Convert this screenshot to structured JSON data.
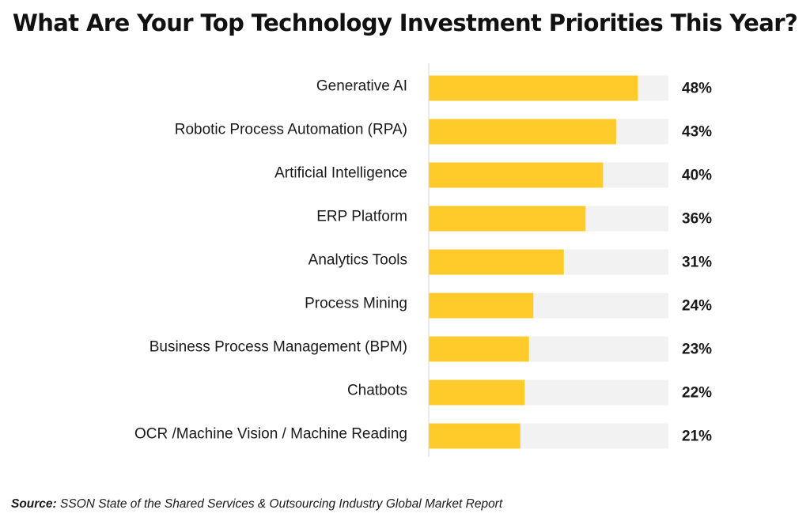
{
  "chart_data": {
    "type": "bar",
    "orientation": "horizontal",
    "title": "What Are Your Top Technology Investment Priorities This Year?",
    "categories": [
      "Generative AI",
      "Robotic Process Automation (RPA)",
      "Artificial Intelligence",
      "ERP Platform",
      "Analytics Tools",
      "Process Mining",
      "Business Process Management (BPM)",
      "Chatbots",
      "OCR /Machine Vision / Machine Reading"
    ],
    "values": [
      48,
      43,
      40,
      36,
      31,
      24,
      23,
      22,
      21
    ],
    "value_labels": [
      "48%",
      "43%",
      "40%",
      "36%",
      "31%",
      "24%",
      "23%",
      "22%",
      "21%"
    ],
    "unit": "%",
    "xlim": [
      0,
      55
    ],
    "grid": false,
    "colors": {
      "bar": "#FFCB2B",
      "track": "#F2F2F2",
      "axis": "#D4D4D4"
    }
  },
  "source": {
    "label": "Source:",
    "text": "SSON State of the Shared Services & Outsourcing Industry Global Market Report"
  }
}
